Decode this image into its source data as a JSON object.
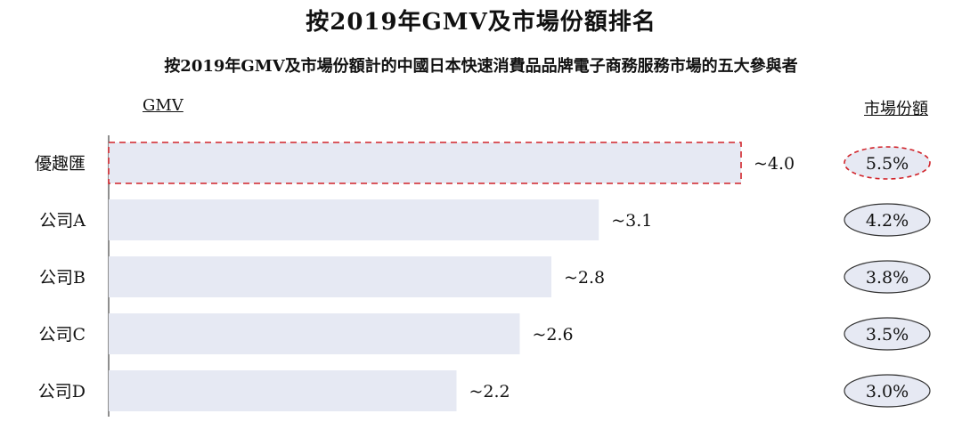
{
  "chart_data": {
    "type": "bar",
    "orientation": "horizontal",
    "title": "按2019年GMV及市場份額排名",
    "subtitle": "按2019年GMV及市場份額計的中國日本快速消費品品牌電子商務服務市場的五大參與者",
    "value_header": "GMV",
    "share_header": "市場份額",
    "categories": [
      "優趣匯",
      "公司A",
      "公司B",
      "公司C",
      "公司D"
    ],
    "values": [
      4.0,
      3.1,
      2.8,
      2.6,
      2.2
    ],
    "value_labels": [
      "~4.0",
      "~3.1",
      "~2.8",
      "~2.6",
      "~2.2"
    ],
    "market_share": [
      "5.5%",
      "4.2%",
      "3.8%",
      "3.5%",
      "3.0%"
    ],
    "highlighted_category": "優趣匯",
    "xlim": [
      0,
      4.0
    ],
    "grid": false,
    "colors": {
      "bar": "#e6e9f3",
      "highlight_border": "#d1232a",
      "ellipse_fill": "#e6e9f3",
      "ellipse_stroke": "#333333"
    }
  }
}
